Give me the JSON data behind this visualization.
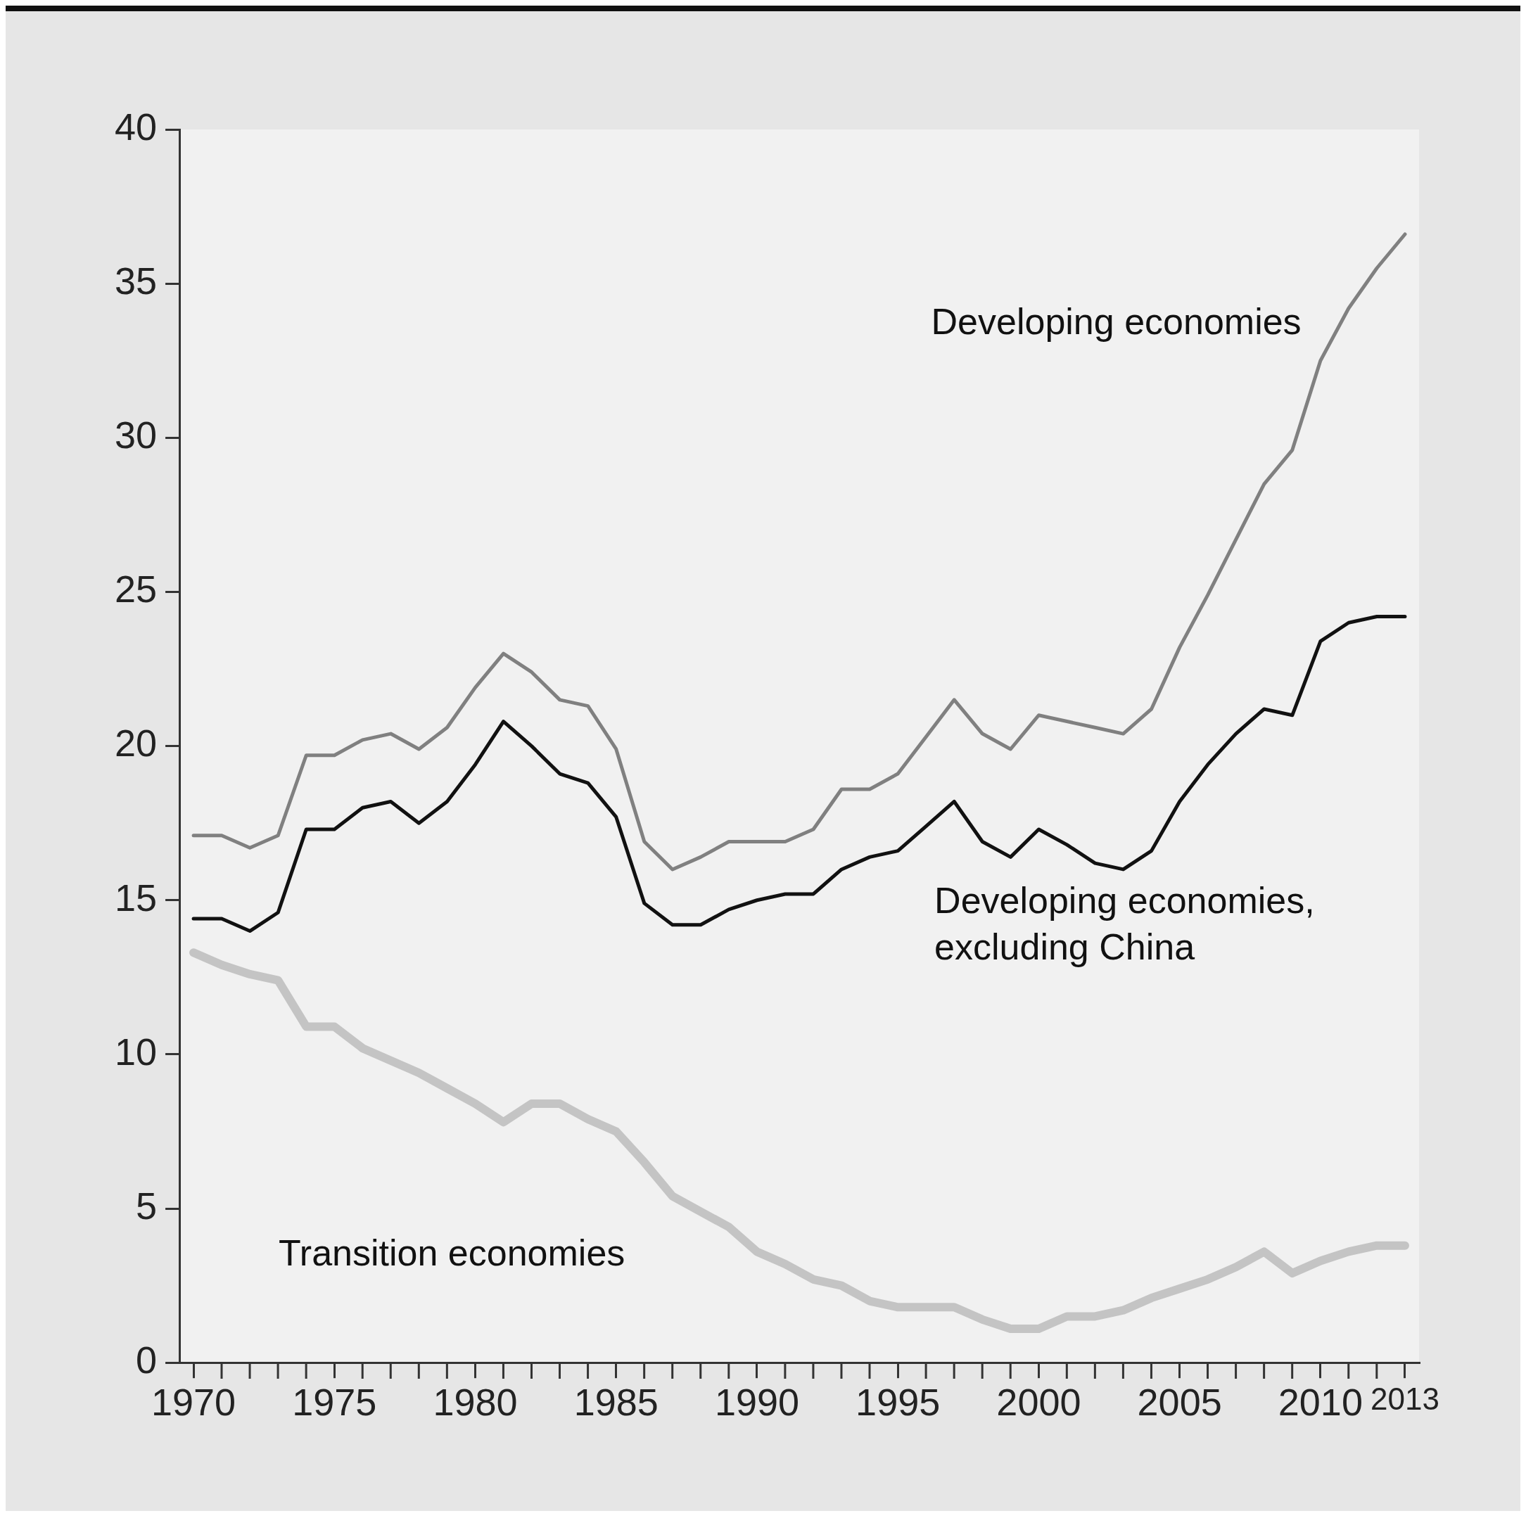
{
  "chart_data": {
    "type": "line",
    "x": [
      1970,
      1971,
      1972,
      1973,
      1974,
      1975,
      1976,
      1977,
      1978,
      1979,
      1980,
      1981,
      1982,
      1983,
      1984,
      1985,
      1986,
      1987,
      1988,
      1989,
      1990,
      1991,
      1992,
      1993,
      1994,
      1995,
      1996,
      1997,
      1998,
      1999,
      2000,
      2001,
      2002,
      2003,
      2004,
      2005,
      2006,
      2007,
      2008,
      2009,
      2010,
      2011,
      2012,
      2013
    ],
    "series": [
      {
        "name": "Developing economies",
        "color": "#808080",
        "values": [
          17.1,
          17.1,
          16.7,
          17.1,
          19.7,
          19.7,
          20.2,
          20.4,
          19.9,
          20.6,
          21.9,
          23.0,
          22.4,
          21.5,
          21.3,
          19.9,
          16.9,
          16.0,
          16.4,
          16.9,
          16.9,
          16.9,
          17.3,
          18.6,
          18.6,
          19.1,
          20.3,
          21.5,
          20.4,
          19.9,
          21.0,
          20.8,
          20.6,
          20.4,
          21.2,
          23.2,
          24.9,
          26.7,
          28.5,
          29.6,
          32.5,
          34.2,
          35.5,
          36.6
        ]
      },
      {
        "name": "Developing economies, excluding China",
        "color": "#111111",
        "values": [
          14.4,
          14.4,
          14.0,
          14.6,
          17.3,
          17.3,
          18.0,
          18.2,
          17.5,
          18.2,
          19.4,
          20.8,
          20.0,
          19.1,
          18.8,
          17.7,
          14.9,
          14.2,
          14.2,
          14.7,
          15.0,
          15.2,
          15.2,
          16.0,
          16.4,
          16.6,
          17.4,
          18.2,
          16.9,
          16.4,
          17.3,
          16.8,
          16.2,
          16.0,
          16.6,
          18.2,
          19.4,
          20.4,
          21.2,
          21.0,
          23.4,
          24.0,
          24.2,
          24.2
        ]
      },
      {
        "name": "Transition economies",
        "color": "#c4c4c4",
        "values": [
          13.3,
          12.9,
          12.6,
          12.4,
          10.9,
          10.9,
          10.2,
          9.8,
          9.4,
          8.9,
          8.4,
          7.8,
          8.4,
          8.4,
          7.9,
          7.5,
          6.5,
          5.4,
          4.9,
          4.4,
          3.6,
          3.2,
          2.7,
          2.5,
          2.0,
          1.8,
          1.8,
          1.8,
          1.4,
          1.1,
          1.1,
          1.5,
          1.5,
          1.7,
          2.1,
          2.4,
          2.7,
          3.1,
          3.6,
          2.9,
          3.3,
          3.6,
          3.8,
          3.8
        ]
      }
    ],
    "xlim": [
      1969.5,
      2013.5
    ],
    "xticks": [
      1970,
      1975,
      1980,
      1985,
      1990,
      1995,
      2000,
      2005,
      2010,
      2013
    ],
    "ylim": [
      0,
      40
    ],
    "yticks": [
      0,
      5,
      10,
      15,
      20,
      25,
      30,
      35,
      40
    ],
    "grid": false,
    "legend": false,
    "marker": "none",
    "line_style": "solid"
  }
}
